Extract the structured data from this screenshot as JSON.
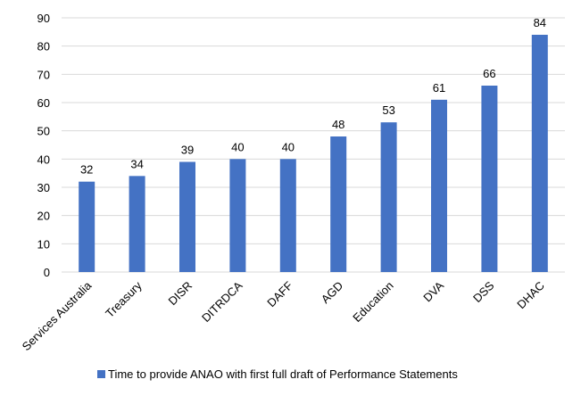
{
  "chart_data": {
    "type": "bar",
    "categories": [
      "Services Australia",
      "Treasury",
      "DISR",
      "DITRDCA",
      "DAFF",
      "AGD",
      "Education",
      "DVA",
      "DSS",
      "DHAC"
    ],
    "series": [
      {
        "name": "Time to provide ANAO with first full draft of Performance Statements",
        "values": [
          32,
          34,
          39,
          40,
          40,
          48,
          53,
          61,
          66,
          84
        ]
      }
    ],
    "yticks": [
      0,
      10,
      20,
      30,
      40,
      50,
      60,
      70,
      80,
      90
    ],
    "ylim": [
      0,
      90
    ],
    "grid": true,
    "data_labels": true,
    "legend": "bottom",
    "bar_color": "#4472C4",
    "grid_color": "#D9D9D9"
  }
}
